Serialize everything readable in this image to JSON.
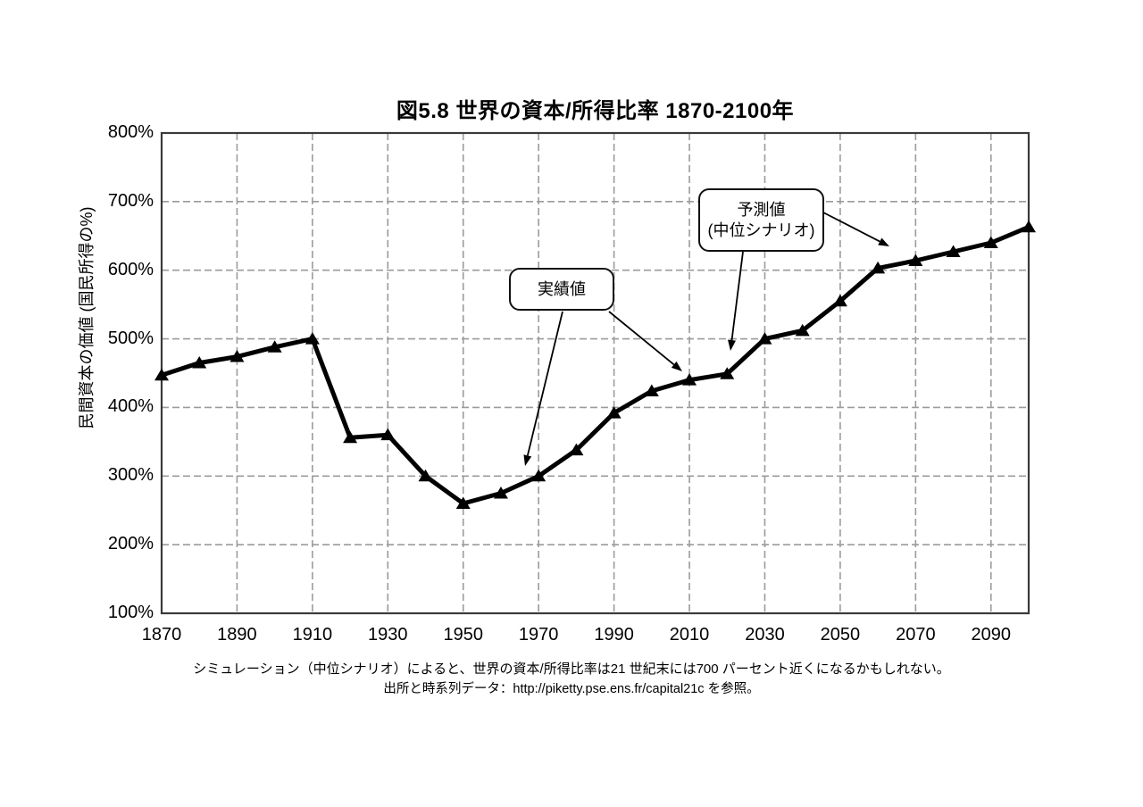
{
  "title": "図5.8 世界の資本/所得比率 1870-2100年",
  "chart_data": {
    "type": "line",
    "title": "図5.8 世界の資本/所得比率 1870-2100年",
    "xlabel": "",
    "ylabel": "民間資本の価値 (国民所得の%)",
    "xlim": [
      1870,
      2100
    ],
    "ylim": [
      100,
      800
    ],
    "grid": "dashed",
    "grid_color": "#9b9b9b",
    "line_color": "#000000",
    "marker": "triangle-up",
    "x": [
      1870,
      1880,
      1890,
      1900,
      1910,
      1920,
      1930,
      1940,
      1950,
      1960,
      1970,
      1980,
      1990,
      2000,
      2010,
      2020,
      2030,
      2040,
      2050,
      2060,
      2070,
      2080,
      2090,
      2100
    ],
    "series": [
      {
        "name": "世界の資本/所得比率",
        "values": [
          447,
          465,
          474,
          488,
          500,
          356,
          360,
          300,
          260,
          275,
          300,
          338,
          392,
          424,
          440,
          449,
          500,
          512,
          555,
          603,
          614,
          627,
          640,
          663
        ]
      }
    ],
    "yticks": [
      {
        "value": 800,
        "label": "800%"
      },
      {
        "value": 700,
        "label": "700%"
      },
      {
        "value": 600,
        "label": "600%"
      },
      {
        "value": 500,
        "label": "500%"
      },
      {
        "value": 400,
        "label": "400%"
      },
      {
        "value": 300,
        "label": "300%"
      },
      {
        "value": 200,
        "label": "200%"
      },
      {
        "value": 100,
        "label": "100%"
      }
    ],
    "xticks": [
      {
        "value": 1870,
        "label": "1870"
      },
      {
        "value": 1890,
        "label": "1890"
      },
      {
        "value": 1910,
        "label": "1910"
      },
      {
        "value": 1930,
        "label": "1930"
      },
      {
        "value": 1950,
        "label": "1950"
      },
      {
        "value": 1970,
        "label": "1970"
      },
      {
        "value": 1990,
        "label": "1990"
      },
      {
        "value": 2010,
        "label": "2010"
      },
      {
        "value": 2030,
        "label": "2030"
      },
      {
        "value": 2050,
        "label": "2050"
      },
      {
        "value": 2070,
        "label": "2070"
      },
      {
        "value": 2090,
        "label": "2090"
      }
    ],
    "annotations": [
      {
        "id": "actual",
        "label": "実績値",
        "targets": [
          {
            "year": 1966,
            "value": 314
          },
          {
            "year": 2008,
            "value": 449
          }
        ]
      },
      {
        "id": "forecast",
        "label_line1": "予測値",
        "label_line2": "(中位シナリオ)",
        "targets": [
          {
            "year": 2021,
            "value": 479
          },
          {
            "year": 2063,
            "value": 631
          }
        ]
      }
    ]
  },
  "caption": {
    "line1": "シミュレーション（中位シナリオ）によると、世界の資本/所得比率は21 世紀末には700 パーセント近くになるかもしれない。",
    "line2": "出所と時系列データ：http://piketty.pse.ens.fr/capital21c を参照。"
  }
}
